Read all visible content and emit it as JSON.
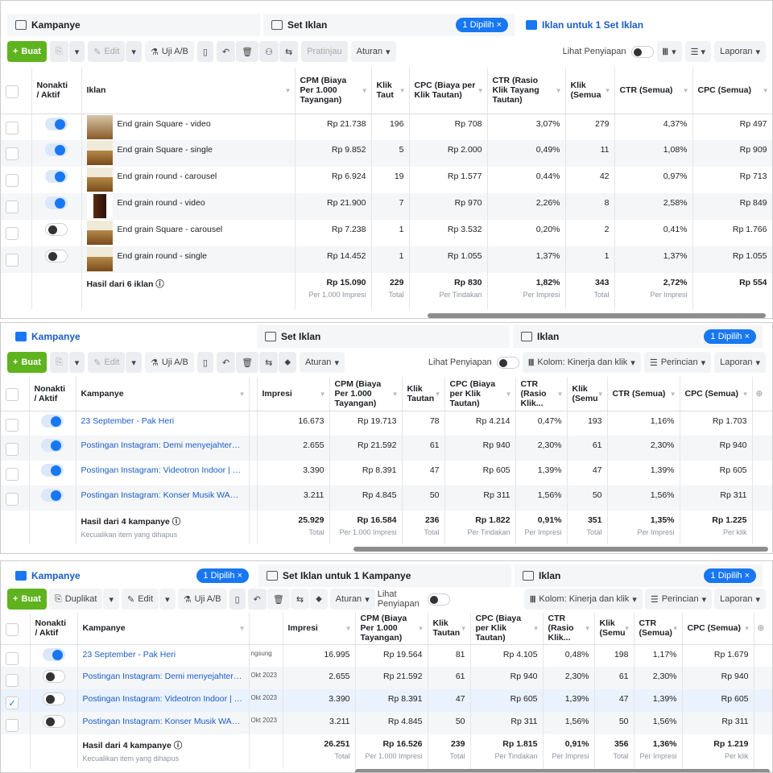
{
  "panel1": {
    "tabs": [
      {
        "label": "Kampanye"
      },
      {
        "label": "Set Iklan",
        "pill": "1 Dipilih ×"
      },
      {
        "label": "Iklan untuk 1 Set Iklan"
      }
    ],
    "toolbar": {
      "create": "Buat",
      "edit": "Edit",
      "ab": "Uji A/B",
      "preview": "Pratinjau",
      "rules": "Aturan",
      "setup": "Lihat Penyiapan",
      "report": "Laporan"
    },
    "headers": [
      "",
      "Nonakti / Aktif",
      "Iklan",
      "CPM (Biaya Per 1.000 Tayangan)",
      "Klik Taut",
      "CPC (Biaya per Klik Tautan)",
      "CTR (Rasio Klik Tayang Tautan)",
      "Klik (Semua",
      "CTR (Semua)",
      "CPC (Semua)"
    ],
    "rows": [
      {
        "name": "End grain Square - video",
        "on": true,
        "thumb": "a",
        "values": [
          "Rp 21.738",
          "196",
          "Rp 708",
          "3,07%",
          "279",
          "4,37%",
          "Rp 497"
        ]
      },
      {
        "name": "End grain Square - single",
        "on": true,
        "thumb": "b",
        "values": [
          "Rp 9.852",
          "5",
          "Rp 2.000",
          "0,49%",
          "11",
          "1,08%",
          "Rp 909"
        ]
      },
      {
        "name": "End grain round - carousel",
        "on": true,
        "thumb": "b",
        "values": [
          "Rp 6.924",
          "19",
          "Rp 1.577",
          "0,44%",
          "42",
          "0,97%",
          "Rp 713"
        ]
      },
      {
        "name": "End grain round - video",
        "on": true,
        "thumb": "v",
        "values": [
          "Rp 21.900",
          "7",
          "Rp 970",
          "2,26%",
          "8",
          "2,58%",
          "Rp 849"
        ]
      },
      {
        "name": "End grain Square - carousel",
        "on": false,
        "thumb": "b",
        "values": [
          "Rp 7.238",
          "1",
          "Rp 3.532",
          "0,20%",
          "2",
          "0,41%",
          "Rp 1.766"
        ]
      },
      {
        "name": "End grain round - single",
        "on": false,
        "thumb": "b",
        "values": [
          "Rp 14.452",
          "1",
          "Rp 1.055",
          "1,37%",
          "1",
          "1,37%",
          "Rp 1.055"
        ]
      }
    ],
    "footer": {
      "label": "Hasil dari 6 iklan",
      "sub": "",
      "values": [
        [
          "Rp 15.090",
          "Per 1.000 Impresi"
        ],
        [
          "229",
          "Total"
        ],
        [
          "Rp 830",
          "Per Tindakan"
        ],
        [
          "1,82%",
          "Per Impresi"
        ],
        [
          "343",
          "Total"
        ],
        [
          "2,72%",
          "Per Impresi"
        ],
        [
          "Rp 554",
          ""
        ]
      ]
    }
  },
  "panel2": {
    "tabs": [
      {
        "label": "Kampanye"
      },
      {
        "label": "Set Iklan"
      },
      {
        "label": "Iklan",
        "pill": "1 Dipilih ×"
      }
    ],
    "toolbar": {
      "create": "Buat",
      "edit": "Edit",
      "ab": "Uji A/B",
      "rules": "Aturan",
      "setup": "Lihat Penyiapan",
      "columns": "Kolom: Kinerja dan klik",
      "breakdown": "Perincian",
      "report": "Laporan"
    },
    "headers": [
      "",
      "Nonakti / Aktif",
      "Kampanye",
      "",
      "Impresi",
      "CPM (Biaya Per 1.000 Tayangan)",
      "Klik Tautan",
      "CPC (Biaya per Klik Tautan)",
      "CTR (Rasio Klik...",
      "Klik (Semu",
      "CTR (Semua)",
      "CPC (Semua)",
      ""
    ],
    "rows": [
      {
        "name": "23 September - Pak Heri",
        "on": true,
        "values": [
          "",
          "16.673",
          "Rp 19.713",
          "78",
          "Rp 4.214",
          "0,47%",
          "193",
          "1,16%",
          "Rp 1.703"
        ]
      },
      {
        "name": "Postingan Instagram: Demi menyejahterakan ...",
        "on": true,
        "values": [
          "",
          "2.655",
          "Rp 21.592",
          "61",
          "Rp 940",
          "2,30%",
          "61",
          "2,30%",
          "Rp 940"
        ]
      },
      {
        "name": "Postingan Instagram: Videotron Indoor | Even...",
        "on": true,
        "values": [
          "",
          "3.390",
          "Rp 8.391",
          "47",
          "Rp 605",
          "1,39%",
          "47",
          "1,39%",
          "Rp 605"
        ]
      },
      {
        "name": "Postingan Instagram: Konser Musik WAMI FE...",
        "on": true,
        "values": [
          "",
          "3.211",
          "Rp 4.845",
          "50",
          "Rp 311",
          "1,56%",
          "50",
          "1,56%",
          "Rp 311"
        ]
      }
    ],
    "footer": {
      "label": "Hasil dari 4 kampanye",
      "sub": "Kecualikan item yang dihapus",
      "values": [
        [
          "",
          ""
        ],
        [
          "25.929",
          "Total"
        ],
        [
          "Rp 16.584",
          "Per 1.000 Impresi"
        ],
        [
          "236",
          "Total"
        ],
        [
          "Rp 1.822",
          "Per Tindakan"
        ],
        [
          "0,91%",
          "Per Impresi"
        ],
        [
          "351",
          "Total"
        ],
        [
          "1,35%",
          "Per Impresi"
        ],
        [
          "Rp 1.225",
          "Per klik"
        ]
      ]
    }
  },
  "panel3": {
    "tabs": [
      {
        "label": "Kampanye",
        "pill": "1 Dipilih ×"
      },
      {
        "label": "Set Iklan untuk 1 Kampanye"
      },
      {
        "label": "Iklan",
        "pill": "1 Dipilih ×"
      }
    ],
    "toolbar": {
      "create": "Buat",
      "duplicate": "Duplikat",
      "edit": "Edit",
      "ab": "Uji A/B",
      "rules": "Aturan",
      "setup": "Lihat Penyiapan",
      "columns": "Kolom: Kinerja dan klik",
      "breakdown": "Perincian",
      "report": "Laporan"
    },
    "headers": [
      "",
      "Nonakti / Aktif",
      "Kampanye",
      "",
      "Impresi",
      "CPM (Biaya Per 1.000 Tayangan)",
      "Klik Tautan",
      "CPC (Biaya per Klik Tautan)",
      "CTR (Rasio Klik...",
      "Klik (Semu",
      "CTR (Semua)",
      "CPC (Semua)",
      ""
    ],
    "rows": [
      {
        "name": "23 September - Pak Heri",
        "on": true,
        "values": [
          "ngsung",
          "16.995",
          "Rp 19.564",
          "81",
          "Rp 4.105",
          "0,48%",
          "198",
          "1,17%",
          "Rp 1.679"
        ]
      },
      {
        "name": "Postingan Instagram: Demi menyejahterakan ...",
        "on": false,
        "values": [
          "Okt 2023",
          "2.655",
          "Rp 21.592",
          "61",
          "Rp 940",
          "2,30%",
          "61",
          "2,30%",
          "Rp 940"
        ]
      },
      {
        "name": "Postingan Instagram: Videotron Indoor | Even...",
        "on": false,
        "checked": true,
        "values": [
          "Okt 2023",
          "3.390",
          "Rp 8.391",
          "47",
          "Rp 605",
          "1,39%",
          "47",
          "1,39%",
          "Rp 605"
        ]
      },
      {
        "name": "Postingan Instagram: Konser Musik WAMI FE...",
        "on": false,
        "values": [
          "Okt 2023",
          "3.211",
          "Rp 4.845",
          "50",
          "Rp 311",
          "1,56%",
          "50",
          "1,56%",
          "Rp 311"
        ]
      }
    ],
    "footer": {
      "label": "Hasil dari 4 kampanye",
      "sub": "Kecualikan item yang dihapus",
      "values": [
        [
          "",
          ""
        ],
        [
          "26.251",
          "Total"
        ],
        [
          "Rp 16.526",
          "Per 1.000 Impresi"
        ],
        [
          "239",
          "Total"
        ],
        [
          "Rp 1.815",
          "Per Tindakan"
        ],
        [
          "0,91%",
          "Per Impresi"
        ],
        [
          "356",
          "Total"
        ],
        [
          "1,36%",
          "Per Impresi"
        ],
        [
          "Rp 1.219",
          "Per klik"
        ]
      ]
    }
  }
}
